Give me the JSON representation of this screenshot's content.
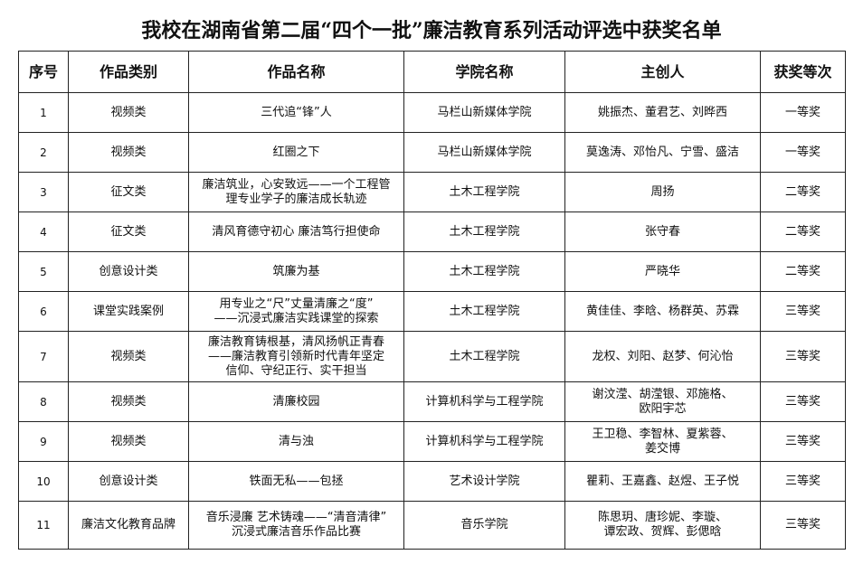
{
  "title": "我校在湖南省第二届“四个一批”廉洁教育系列活动评选中获奖名单",
  "headers": [
    "序号",
    "作品类别",
    "作品名称",
    "学院名称",
    "主创人",
    "获奖等次"
  ],
  "rows": [
    {
      "no": "1",
      "category": "视频类",
      "work": "三代追“锋”人",
      "college": "马栏山新媒体学院",
      "authors": "姚振杰、董君艺、刘晔西",
      "award": "一等奖"
    },
    {
      "no": "2",
      "category": "视频类",
      "work": "红圈之下",
      "college": "马栏山新媒体学院",
      "authors": "莫逸涛、邓怡凡、宁雪、盛洁",
      "award": "一等奖"
    },
    {
      "no": "3",
      "category": "征文类",
      "work": "廉洁筑业，心安致远——一个工程管\n理专业学子的廉洁成长轨迹",
      "college": "土木工程学院",
      "authors": "周扬",
      "award": "二等奖"
    },
    {
      "no": "4",
      "category": "征文类",
      "work": "清风育德守初心  廉洁笃行担使命",
      "college": "土木工程学院",
      "authors": "张守春",
      "award": "二等奖"
    },
    {
      "no": "5",
      "category": "创意设计类",
      "work": "筑廉为基",
      "college": "土木工程学院",
      "authors": "严晓华",
      "award": "二等奖"
    },
    {
      "no": "6",
      "category": "课堂实践案例",
      "work": "用专业之“尺”丈量清廉之“度”\n——沉浸式廉洁实践课堂的探索",
      "college": "土木工程学院",
      "authors": "黄佳佳、李晗、杨群英、苏霖",
      "award": "三等奖"
    },
    {
      "no": "7",
      "category": "视频类",
      "work": "廉洁教育铸根基，清风扬帆正青春\n——廉洁教育引领新时代青年坚定\n信仰、守纪正行、实干担当",
      "college": "土木工程学院",
      "authors": "龙权、刘阳、赵梦、何沁怡",
      "award": "三等奖"
    },
    {
      "no": "8",
      "category": "视频类",
      "work": "清廉校园",
      "college": "计算机科学与工程学院",
      "authors": "谢汶滢、胡滢银、邓施格、\n欧阳宇芯",
      "award": "三等奖"
    },
    {
      "no": "9",
      "category": "视频类",
      "work": "清与浊",
      "college": "计算机科学与工程学院",
      "authors": "王卫稳、李智林、夏紫蓉、\n姜交博",
      "award": "三等奖"
    },
    {
      "no": "10",
      "category": "创意设计类",
      "work": "铁面无私——包拯",
      "college": "艺术设计学院",
      "authors": "瞿莉、王嘉鑫、赵煜、王子悦",
      "award": "三等奖"
    },
    {
      "no": "11",
      "category": "廉洁文化教育品牌",
      "work": "音乐浸廉  艺术铸魂——“清音清律”\n沉浸式廉洁音乐作品比赛",
      "college": "音乐学院",
      "authors": "陈思玥、唐珍妮、李璇、\n谭宏政、贺辉、彭偲晗",
      "award": "三等奖"
    }
  ]
}
